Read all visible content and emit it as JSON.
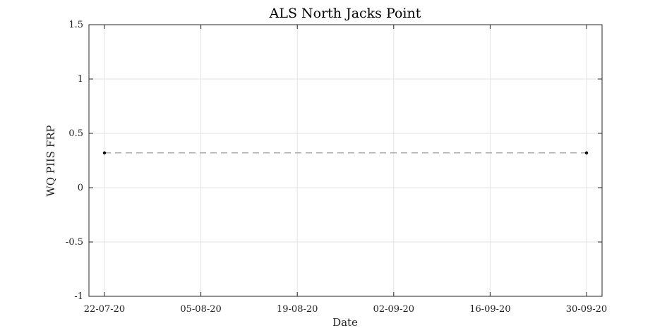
{
  "chart_data": {
    "type": "line",
    "title": "ALS North Jacks Point",
    "xlabel": "Date",
    "ylabel": "WQ PIIS FRP",
    "x_ticks": [
      "22-07-20",
      "05-08-20",
      "19-08-20",
      "02-09-20",
      "16-09-20",
      "30-09-20"
    ],
    "y_ticks": [
      "1.5",
      "1",
      "0.5",
      "0",
      "-0.5",
      "-1"
    ],
    "y_tick_values": [
      1.5,
      1,
      0.5,
      0,
      -0.5,
      -1
    ],
    "ylim": [
      -1,
      1.5
    ],
    "xlim": [
      "2020-07-22",
      "2020-09-30"
    ],
    "grid": true,
    "series": [
      {
        "x": [
          "2020-07-22",
          "2020-09-30"
        ],
        "y": [
          0.32,
          0.32
        ],
        "line_style": "dashed",
        "line_color": "#a0a0a0",
        "marker_color": "#111111"
      }
    ]
  }
}
